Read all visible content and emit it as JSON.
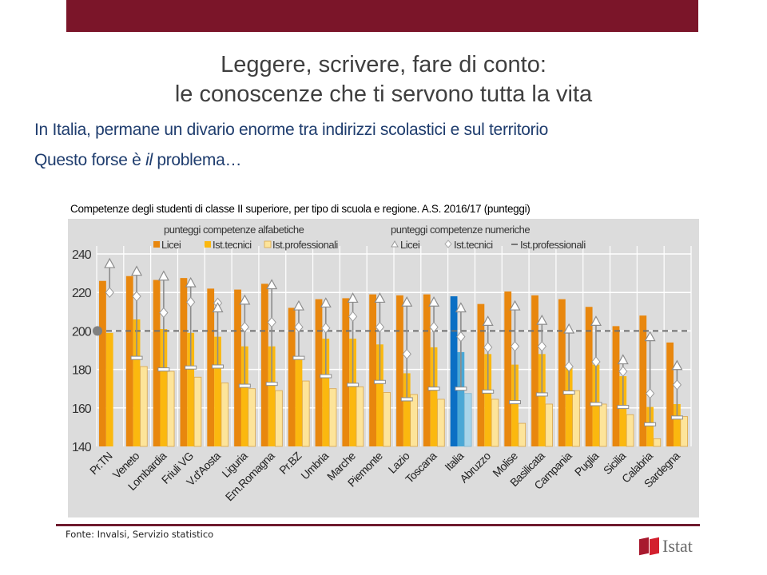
{
  "slide": {
    "title_line1": "Leggere, scrivere, fare di conto:",
    "title_line2": "le conoscenze che ti servono tutta la vita",
    "subtitle_line1": "In Italia, permane un divario enorme tra indirizzi scolastici e sul territorio",
    "subtitle_line2_pre": "Questo forse è ",
    "subtitle_line2_em": "il",
    "subtitle_line2_post": " problema…",
    "source": "Fonte: Invalsi, Servizio statistico",
    "logo_text": "Istat",
    "colors": {
      "band": "#7b1529",
      "subtitle": "#1f3d6e"
    }
  },
  "chart_data": {
    "type": "bar",
    "title": "Competenze degli studenti di classe II superiore, per tipo di scuola e regione. A.S. 2016/17",
    "title_unit": "(punteggi)",
    "xlabel": "",
    "ylabel": "",
    "ylim": [
      140,
      240
    ],
    "yticks": [
      140,
      160,
      180,
      200,
      220,
      240
    ],
    "grid": true,
    "reference_line": {
      "value": 200,
      "style": "dashed"
    },
    "legend_placement": "top",
    "legend": {
      "bars_heading": "punteggi competenze alfabetiche",
      "markers_heading": "punteggi competenze numeriche",
      "bar_entries": [
        "Licei",
        "Ist.tecnici",
        "Ist.professionali"
      ],
      "marker_entries": [
        "Licei",
        "Ist.tecnici",
        "Ist.professionali"
      ]
    },
    "categories": [
      "Pr.TN",
      "Veneto",
      "Lombardia",
      "Friuli VG",
      "V.d'Aosta",
      "Liguria",
      "Em.Romagna",
      "Pr.BZ",
      "Umbria",
      "Marche",
      "Piemonte",
      "Lazio",
      "Toscana",
      "Italia",
      "Abruzzo",
      "Molise",
      "Basilicata",
      "Campania",
      "Puglia",
      "Sicilia",
      "Calabria",
      "Sardegna"
    ],
    "highlight_category": "Italia",
    "series": [
      {
        "name": "Licei (alfabetiche)",
        "kind": "bar",
        "color": "#e8870e",
        "highlight_color": "#0b6fc4",
        "values": [
          226,
          228.5,
          226.5,
          227.5,
          222,
          221.5,
          224.5,
          212,
          216.5,
          217,
          219,
          218.5,
          219,
          218,
          214,
          220.5,
          218.5,
          216.5,
          212.5,
          202.5,
          208,
          194
        ]
      },
      {
        "name": "Ist.tecnici (alfabetiche)",
        "kind": "bar",
        "color": "#fbb80f",
        "highlight_color": "#4aa8d6",
        "values": [
          199,
          206,
          201,
          199,
          197,
          192,
          192,
          185,
          196,
          196,
          193,
          178,
          191.5,
          189,
          188,
          182.5,
          188,
          181,
          182.5,
          176.5,
          160.5,
          162
        ]
      },
      {
        "name": "Ist.professionali (alfabetiche)",
        "kind": "bar",
        "color": "#fde49a",
        "highlight_color": "#a8d5ea",
        "values": [
          null,
          181.5,
          179,
          176,
          173,
          170,
          169,
          174,
          170,
          171,
          168,
          167,
          164.5,
          167.5,
          164.5,
          152,
          162,
          169,
          162,
          156.5,
          144,
          155.5
        ]
      },
      {
        "name": "Licei (numeriche)",
        "kind": "marker",
        "marker": "triangle",
        "values": [
          235,
          231,
          228.5,
          225,
          212,
          216,
          224,
          213,
          214.5,
          217,
          217,
          215,
          215,
          212,
          205,
          213,
          205.5,
          201,
          205,
          185,
          197,
          182
        ]
      },
      {
        "name": "Ist.tecnici (numeriche)",
        "kind": "marker",
        "marker": "diamond",
        "values": [
          220,
          218,
          209.5,
          215,
          214.5,
          202,
          204.5,
          202,
          201.5,
          207.5,
          202,
          188,
          202,
          197,
          191.5,
          192,
          192,
          181.5,
          184,
          179,
          167.5,
          172
        ]
      },
      {
        "name": "Ist.professionali (numeriche)",
        "kind": "marker",
        "marker": "dash",
        "values": [
          null,
          186,
          180,
          181,
          181.5,
          171.5,
          172.5,
          186,
          176.5,
          172,
          173.5,
          164.5,
          170,
          170,
          168.5,
          163,
          167,
          168,
          162,
          160.5,
          151.5,
          155
        ]
      }
    ]
  }
}
